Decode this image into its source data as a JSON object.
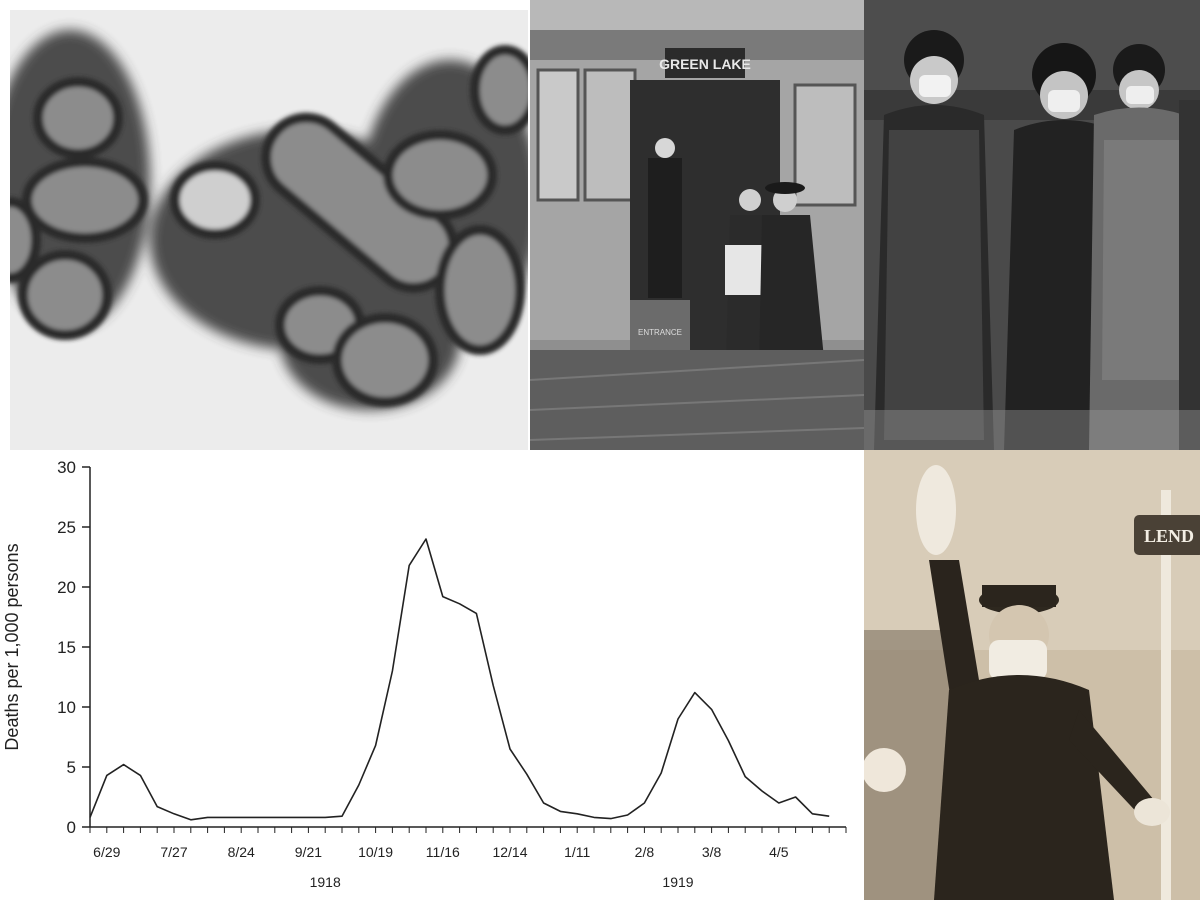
{
  "photos": {
    "tram_sign": "GREEN LAKE",
    "tram_door_sign": "ENTRANCE",
    "street_sign": "LEND"
  },
  "chart_data": {
    "type": "line",
    "title": "",
    "ylabel": "Deaths per 1,000 persons",
    "xlabel": "",
    "ylim": [
      0,
      30
    ],
    "yticks": [
      0,
      5,
      10,
      15,
      20,
      25,
      30
    ],
    "ytick_labels": [
      "0",
      "5",
      "10",
      "15",
      "20",
      "25",
      "30"
    ],
    "xtick_labels": [
      "6/29",
      "7/27",
      "8/24",
      "9/21",
      "10/19",
      "11/16",
      "12/14",
      "1/11",
      "2/8",
      "3/8",
      "4/5"
    ],
    "year_labels": [
      {
        "label": "1918",
        "week": 14
      },
      {
        "label": "1919",
        "week": 35
      }
    ],
    "x_minor_ticks": 46,
    "series": [
      {
        "values": [
          0.8,
          4.3,
          5.2,
          4.3,
          1.7,
          1.1,
          0.6,
          0.8,
          0.8,
          0.8,
          0.8,
          0.8,
          0.8,
          0.8,
          0.8,
          0.9,
          3.5,
          6.8,
          13.0,
          21.8,
          24.0,
          19.2,
          18.6,
          17.8,
          11.8,
          6.5,
          4.4,
          2.0,
          1.3,
          1.1,
          0.8,
          0.7,
          1.0,
          2.0,
          4.5,
          9.0,
          11.2,
          9.8,
          7.2,
          4.2,
          3.0,
          2.0,
          2.5,
          1.1,
          0.9
        ]
      }
    ],
    "grid": false,
    "colors": {
      "line": "#222222",
      "axis": "#222222"
    }
  }
}
